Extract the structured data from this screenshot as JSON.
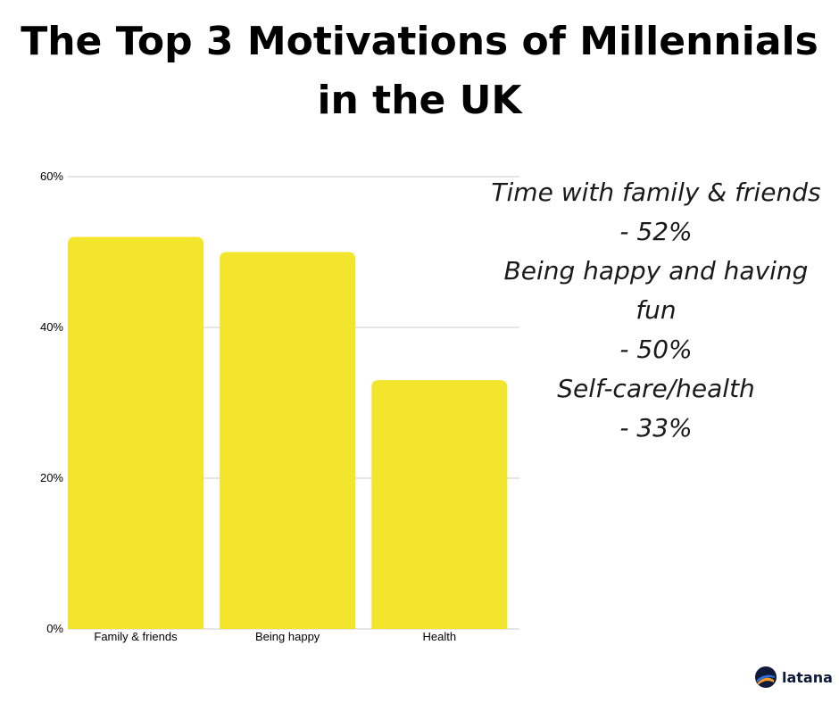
{
  "title": {
    "line1": "The Top 3 Motivations of Millennials",
    "line2": "in the UK"
  },
  "notes": {
    "line1": "Time with family & friends",
    "line2": "- 52%",
    "line3": "Being happy and having",
    "line4": "fun",
    "line5": "- 50%",
    "line6": "Self-care/health",
    "line7": "- 33%"
  },
  "logo": {
    "text": "latana",
    "icon": "latana-logo-icon"
  },
  "colors": {
    "bar": "#f3e42c",
    "grid": "#cccccc",
    "text": "#000000"
  },
  "chart_data": {
    "type": "bar",
    "categories": [
      "Family & friends",
      "Being happy",
      "Health"
    ],
    "values": [
      52,
      50,
      33
    ],
    "title": "",
    "xlabel": "",
    "ylabel": "",
    "ylim": [
      0,
      60
    ],
    "yticks": [
      0,
      20,
      40,
      60
    ],
    "ytick_labels": [
      "0%",
      "20%",
      "40%",
      "60%"
    ],
    "grid": true,
    "legend": "none"
  }
}
